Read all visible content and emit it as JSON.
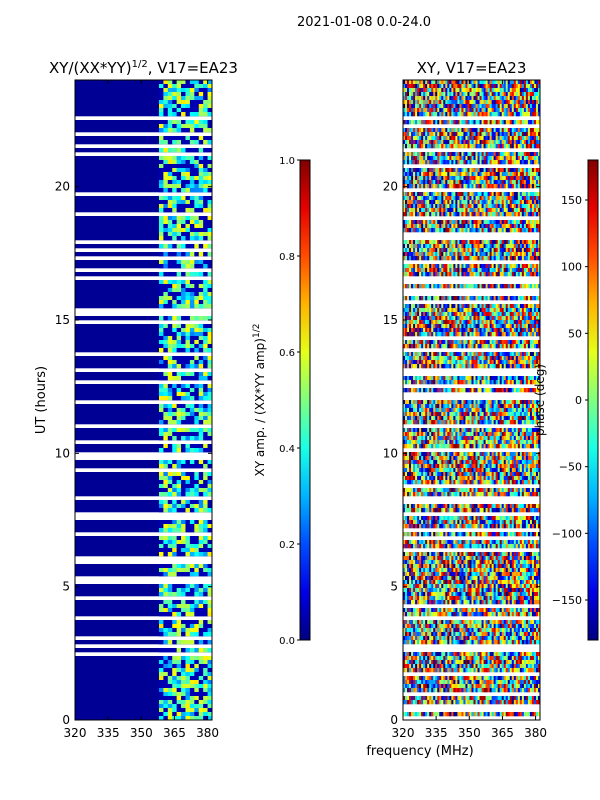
{
  "suptitle": "2021-01-08 0.0-24.0",
  "chart_data": [
    {
      "type": "heatmap",
      "title_prefix": "XY/(XX*YY)",
      "title_exp": "1/2",
      "title_suffix": ", V17=EA23",
      "xlabel": "",
      "ylabel": "UT (hours)",
      "xlim": [
        320,
        382
      ],
      "ylim": [
        0,
        24
      ],
      "xticks": [
        "320",
        "335",
        "350",
        "365",
        "380"
      ],
      "xtick_values": [
        320,
        335,
        350,
        365,
        380
      ],
      "yticks": [
        "0",
        "5",
        "10",
        "15",
        "20"
      ],
      "ytick_values": [
        0,
        5,
        10,
        15,
        20
      ],
      "colormap": "jet",
      "active_band": [
        358,
        382
      ],
      "colorbar": {
        "label_prefix": "XY amp. / (XX*YY amp)",
        "label_exp": "1/2",
        "range": [
          0.0,
          1.0
        ],
        "ticks": [
          "0.0",
          "0.2",
          "0.4",
          "0.6",
          "0.8",
          "1.0"
        ],
        "tick_values": [
          0.0,
          0.2,
          0.4,
          0.6,
          0.8,
          1.0
        ]
      }
    },
    {
      "type": "heatmap",
      "title_prefix": "XY, V17=EA23",
      "title_exp": "",
      "title_suffix": "",
      "xlabel": "frequency (MHz)",
      "ylabel": "",
      "xlim": [
        320,
        382
      ],
      "ylim": [
        0,
        24
      ],
      "xticks": [
        "320",
        "335",
        "350",
        "365",
        "380"
      ],
      "xtick_values": [
        320,
        335,
        350,
        365,
        380
      ],
      "yticks": [
        "0",
        "5",
        "10",
        "15",
        "20"
      ],
      "ytick_values": [
        0,
        5,
        10,
        15,
        20
      ],
      "colormap": "jet",
      "colorbar": {
        "label_prefix": "phase (deg)",
        "label_exp": "",
        "range": [
          -180,
          180
        ],
        "ticks": [
          "−150",
          "−100",
          "−50",
          "0",
          "50",
          "100",
          "150"
        ],
        "tick_values": [
          -150,
          -100,
          -50,
          0,
          50,
          100,
          150
        ]
      }
    }
  ]
}
